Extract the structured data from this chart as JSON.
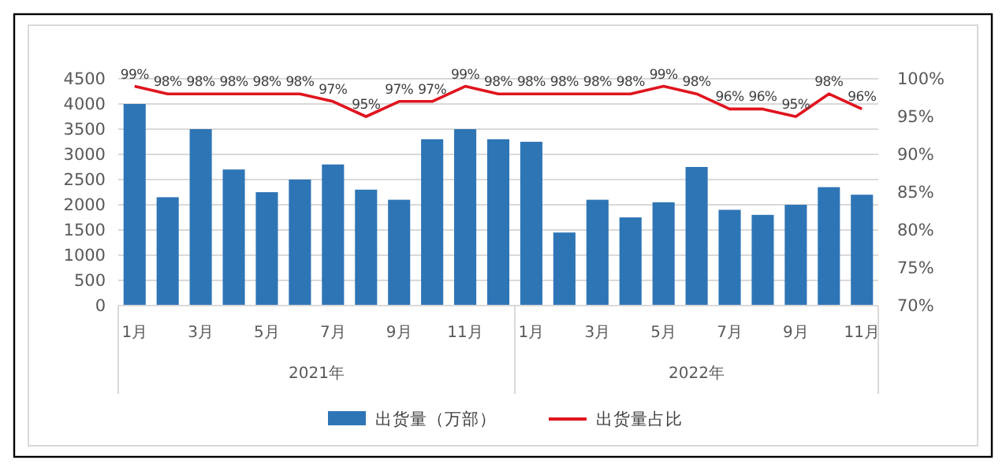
{
  "chart_data": {
    "type": "bar",
    "categories": [
      "1月",
      null,
      "3月",
      null,
      "5月",
      null,
      "7月",
      null,
      "9月",
      null,
      "11月",
      null,
      "1月",
      null,
      "3月",
      null,
      "5月",
      null,
      "7月",
      null,
      "9月",
      null,
      "11月"
    ],
    "series": [
      {
        "name": "出货量（万部）",
        "color": "#2e75b6",
        "values": [
          4000,
          2150,
          3500,
          2700,
          2250,
          2500,
          2800,
          2300,
          2100,
          3300,
          3500,
          3300,
          3250,
          1450,
          2100,
          1750,
          2050,
          2750,
          1900,
          1800,
          2000,
          2350,
          2200
        ]
      },
      {
        "name": "出货量占比",
        "type": "line",
        "axis": "y2",
        "color": "#e0141e",
        "values": [
          99,
          98,
          98,
          98,
          98,
          98,
          97,
          95,
          97,
          97,
          99,
          98,
          98,
          98,
          98,
          98,
          99,
          98,
          96,
          96,
          95,
          98,
          96
        ],
        "value_labels": [
          "99%",
          "98%",
          "98%",
          "98%",
          "98%",
          "98%",
          "97%",
          "95%",
          "97%",
          "97%",
          "99%",
          "98%",
          "98%",
          "98%",
          "98%",
          "98%",
          "99%",
          "98%",
          "96%",
          "96%",
          "95%",
          "98%",
          "96%"
        ]
      }
    ],
    "ylim": [
      0,
      4500
    ],
    "yticks": [
      0,
      500,
      1000,
      1500,
      2000,
      2500,
      3000,
      3500,
      4000,
      4500
    ],
    "y2lim": [
      70,
      100
    ],
    "y2ticks": [
      {
        "value": 70,
        "label": "70%"
      },
      {
        "value": 75,
        "label": "75%"
      },
      {
        "value": 80,
        "label": "80%"
      },
      {
        "value": 85,
        "label": "85%"
      },
      {
        "value": 90,
        "label": "90%"
      },
      {
        "value": 95,
        "label": "95%"
      },
      {
        "value": 100,
        "label": "100%"
      }
    ],
    "annotations": [
      "2021年",
      "2022年"
    ],
    "grid": "y",
    "legend": "bottom",
    "marker": "none",
    "line_style": "solid"
  }
}
